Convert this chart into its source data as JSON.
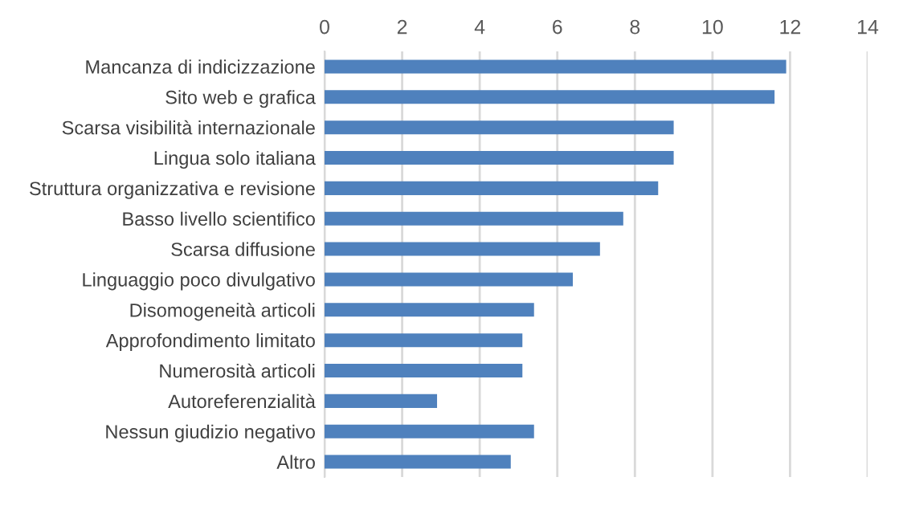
{
  "chart_data": {
    "type": "bar",
    "orientation": "horizontal",
    "categories": [
      "Mancanza di indicizzazione",
      "Sito web e grafica",
      "Scarsa visibilità internazionale",
      "Lingua solo italiana",
      "Struttura organizzativa e revisione",
      "Basso livello scientifico",
      "Scarsa diffusione",
      "Linguaggio poco divulgativo",
      "Disomogeneità articoli",
      "Approfondimento limitato",
      "Numerosità articoli",
      "Autoreferenzialità",
      "Nessun giudizio negativo",
      "Altro"
    ],
    "values": [
      11.9,
      11.6,
      9.0,
      9.0,
      8.6,
      7.7,
      7.1,
      6.4,
      5.4,
      5.1,
      5.1,
      2.9,
      5.4,
      4.8
    ],
    "color": "#4f81bd",
    "xlim": [
      0,
      14
    ],
    "xticks": [
      0,
      2,
      4,
      6,
      8,
      10,
      12,
      14
    ],
    "grid": "x",
    "legend": false
  }
}
